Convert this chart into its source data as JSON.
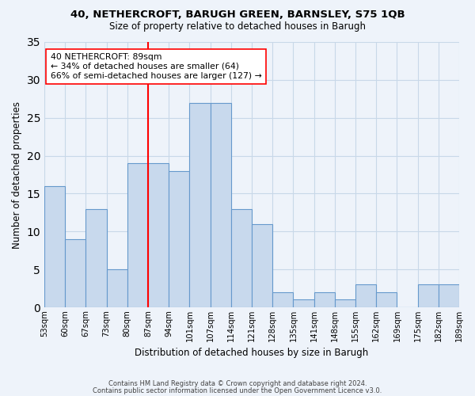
{
  "title1": "40, NETHERCROFT, BARUGH GREEN, BARNSLEY, S75 1QB",
  "title2": "Size of property relative to detached houses in Barugh",
  "xlabel": "Distribution of detached houses by size in Barugh",
  "ylabel": "Number of detached properties",
  "footer1": "Contains HM Land Registry data © Crown copyright and database right 2024.",
  "footer2": "Contains public sector information licensed under the Open Government Licence v3.0.",
  "bin_labels": [
    "53sqm",
    "60sqm",
    "67sqm",
    "73sqm",
    "80sqm",
    "87sqm",
    "94sqm",
    "101sqm",
    "107sqm",
    "114sqm",
    "121sqm",
    "128sqm",
    "135sqm",
    "141sqm",
    "148sqm",
    "155sqm",
    "162sqm",
    "169sqm",
    "175sqm",
    "182sqm",
    "189sqm"
  ],
  "bar_heights": [
    16,
    9,
    13,
    5,
    19,
    19,
    18,
    27,
    27,
    13,
    11,
    2,
    1,
    2,
    1,
    3,
    2,
    0,
    3,
    3
  ],
  "bar_color": "#c8d9ed",
  "bar_edge_color": "#6699cc",
  "vline_x": 5,
  "vline_color": "red",
  "annotation_text": "40 NETHERCROFT: 89sqm\n← 34% of detached houses are smaller (64)\n66% of semi-detached houses are larger (127) →",
  "annotation_box_color": "white",
  "annotation_box_edge": "red",
  "ylim": [
    0,
    35
  ],
  "yticks": [
    0,
    5,
    10,
    15,
    20,
    25,
    30,
    35
  ],
  "grid_color": "#c8d8e8",
  "background_color": "#eef3fa"
}
